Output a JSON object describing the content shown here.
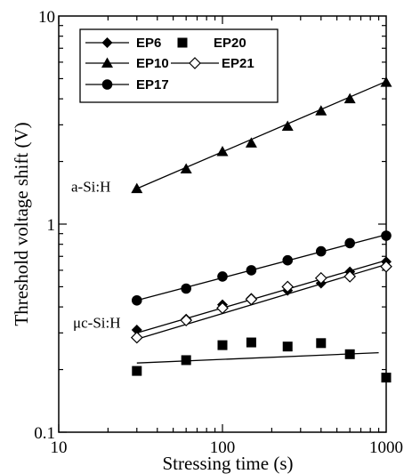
{
  "chart_data": {
    "type": "scatter",
    "title": "",
    "xlabel": "Stressing time (s)",
    "ylabel": "Threshold voltage shift (V)",
    "xscale": "log",
    "yscale": "log",
    "xlim": [
      10,
      1000
    ],
    "ylim": [
      0.1,
      10
    ],
    "x_ticks": [
      "10",
      "100",
      "1000"
    ],
    "y_ticks": [
      "0.1",
      "1",
      "10"
    ],
    "grid": false,
    "legend_position": "top-left",
    "series": [
      {
        "name": "EP6",
        "marker": "diamond-filled",
        "points": [
          [
            30,
            0.31
          ],
          [
            60,
            0.35
          ],
          [
            100,
            0.41
          ],
          [
            150,
            0.44
          ],
          [
            250,
            0.48
          ],
          [
            400,
            0.52
          ],
          [
            600,
            0.59
          ],
          [
            1000,
            0.66
          ]
        ],
        "fit": [
          [
            30,
            0.3
          ],
          [
            1000,
            0.67
          ]
        ]
      },
      {
        "name": "EP20",
        "marker": "square-filled",
        "points": [
          [
            30,
            0.197
          ],
          [
            60,
            0.222
          ],
          [
            100,
            0.262
          ],
          [
            150,
            0.27
          ],
          [
            250,
            0.258
          ],
          [
            400,
            0.268
          ],
          [
            600,
            0.237
          ],
          [
            1000,
            0.183
          ]
        ],
        "fit": [
          [
            30,
            0.215
          ],
          [
            900,
            0.241
          ]
        ]
      },
      {
        "name": "EP10",
        "marker": "triangle-filled",
        "points": [
          [
            30,
            1.48
          ],
          [
            60,
            1.84
          ],
          [
            100,
            2.23
          ],
          [
            150,
            2.45
          ],
          [
            250,
            2.95
          ],
          [
            400,
            3.5
          ],
          [
            600,
            4.0
          ],
          [
            1000,
            4.8
          ]
        ],
        "fit": [
          [
            30,
            1.48
          ],
          [
            1000,
            4.85
          ]
        ]
      },
      {
        "name": "EP21",
        "marker": "diamond-open",
        "points": [
          [
            30,
            0.285
          ],
          [
            60,
            0.345
          ],
          [
            100,
            0.395
          ],
          [
            150,
            0.435
          ],
          [
            250,
            0.5
          ],
          [
            400,
            0.55
          ],
          [
            600,
            0.56
          ],
          [
            1000,
            0.625
          ]
        ],
        "fit": [
          [
            30,
            0.28
          ],
          [
            1000,
            0.64
          ]
        ]
      },
      {
        "name": "EP17",
        "marker": "circle-filled",
        "points": [
          [
            30,
            0.43
          ],
          [
            60,
            0.49
          ],
          [
            100,
            0.56
          ],
          [
            150,
            0.6
          ],
          [
            250,
            0.67
          ],
          [
            400,
            0.74
          ],
          [
            600,
            0.81
          ],
          [
            1000,
            0.88
          ]
        ],
        "fit": [
          [
            30,
            0.43
          ],
          [
            1000,
            0.89
          ]
        ]
      }
    ],
    "annotations": [
      {
        "text": "a-Si:H",
        "near": "EP10"
      },
      {
        "text": "μc-Si:H",
        "near": "EP6"
      }
    ]
  }
}
